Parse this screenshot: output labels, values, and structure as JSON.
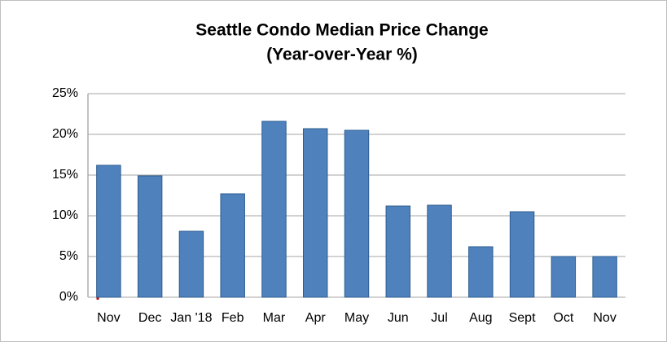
{
  "chart_data": {
    "type": "bar",
    "title": "Seattle Condo Median Price Change",
    "subtitle": "(Year-over-Year %)",
    "categories": [
      "Nov",
      "Dec",
      "Jan '18",
      "Feb",
      "Mar",
      "Apr",
      "May",
      "Jun",
      "Jul",
      "Aug",
      "Sept",
      "Oct",
      "Nov"
    ],
    "values": [
      16.2,
      14.9,
      8.1,
      12.7,
      21.6,
      20.7,
      20.5,
      11.2,
      11.3,
      6.2,
      10.5,
      5.0,
      5.0
    ],
    "color": "#4f81bd",
    "ylim": [
      0,
      25
    ],
    "yticks": [
      {
        "value": 0,
        "label": "0%"
      },
      {
        "value": 5,
        "label": "5%"
      },
      {
        "value": 10,
        "label": "10%"
      },
      {
        "value": 15,
        "label": "15%"
      },
      {
        "value": 20,
        "label": "20%"
      },
      {
        "value": 25,
        "label": "25%"
      }
    ],
    "grid": true
  }
}
